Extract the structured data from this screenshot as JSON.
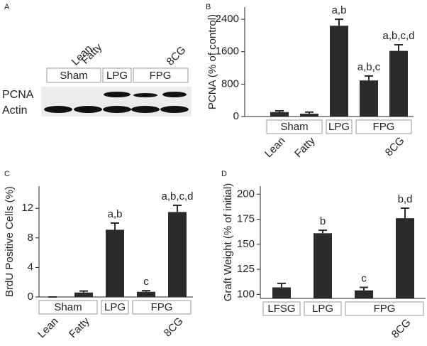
{
  "blot": {
    "panel_label": "A",
    "lanes": [
      "Lean",
      "Fatty",
      "8CG"
    ],
    "groups": [
      "Sham",
      "LPG",
      "FPG"
    ],
    "rows": [
      "PCNA",
      "Actin"
    ]
  },
  "chart_data": [
    {
      "type": "bar",
      "panel_label": "B",
      "ylabel": "PCNA (% of control)",
      "color": "#2b2b2b",
      "categories": [
        "Lean",
        "Fatty",
        null,
        null,
        "8CG"
      ],
      "groups": [
        {
          "label": "Sham",
          "count": 2
        },
        {
          "label": "LPG",
          "count": 1
        },
        {
          "label": "FPG",
          "count": 2
        }
      ],
      "values": [
        110,
        70,
        2240,
        890,
        1620
      ],
      "errors": [
        30,
        40,
        160,
        110,
        150
      ],
      "annotations": [
        null,
        null,
        "a,b",
        "a,b,c",
        "a,b,c,d"
      ],
      "ylim": [
        0,
        2700
      ],
      "yticks": [
        0,
        800,
        1600,
        2400
      ]
    },
    {
      "type": "bar",
      "panel_label": "C",
      "ylabel": "BrdU Positive Cells (%)",
      "color": "#2b2b2b",
      "categories": [
        "Lean",
        "Fatty",
        null,
        null,
        "8CG"
      ],
      "groups": [
        {
          "label": "Sham",
          "count": 2
        },
        {
          "label": "LPG",
          "count": 1
        },
        {
          "label": "FPG",
          "count": 2
        }
      ],
      "values": [
        0,
        0.6,
        9.1,
        0.7,
        11.5
      ],
      "errors": [
        0,
        0.2,
        0.9,
        0.15,
        0.9
      ],
      "annotations": [
        null,
        null,
        "a,b",
        "c",
        "a,b,c,d"
      ],
      "ylim": [
        0,
        15
      ],
      "yticks": [
        0,
        4,
        8,
        12
      ]
    },
    {
      "type": "bar",
      "panel_label": "D",
      "ylabel": "Graft Weight (% of initial)",
      "color": "#2b2b2b",
      "categories": [
        null,
        null,
        null,
        "8CG"
      ],
      "groups": [
        {
          "label": "LFSG",
          "count": 1
        },
        {
          "label": "LPG",
          "count": 1
        },
        {
          "label": "FPG",
          "count": 2
        }
      ],
      "values": [
        107,
        161,
        104,
        176
      ],
      "errors": [
        4,
        3,
        3,
        10
      ],
      "annotations": [
        null,
        "b",
        "c",
        "b,d"
      ],
      "ylim": [
        96,
        208
      ],
      "yticks": [
        100,
        125,
        150,
        175,
        200
      ]
    }
  ]
}
